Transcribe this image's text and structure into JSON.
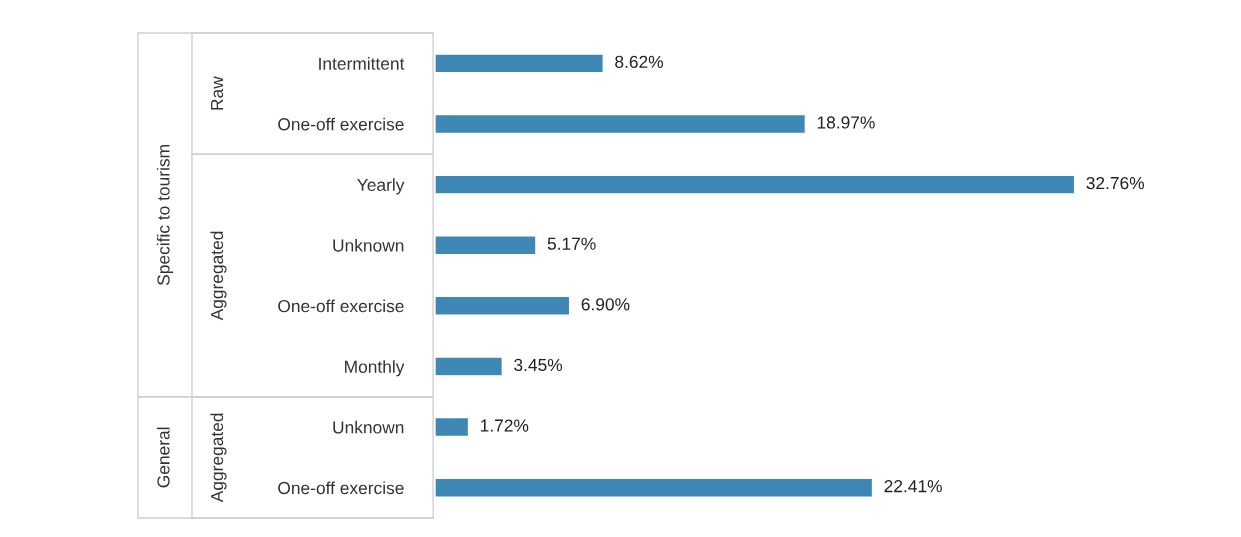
{
  "chart_data": {
    "type": "bar",
    "orientation": "horizontal",
    "tick_labels": "y",
    "categories": [
      "Intermittent",
      "One-off exercise",
      "Yearly",
      "Unknown",
      "One-off exercise",
      "Monthly",
      "Unknown",
      "One-off exercise"
    ],
    "values": [
      8.62,
      18.97,
      32.76,
      5.17,
      6.9,
      3.45,
      1.72,
      22.41
    ],
    "value_labels": [
      "8.62%",
      "18.97%",
      "32.76%",
      "5.17%",
      "6.90%",
      "3.45%",
      "1.72%",
      "22.41%"
    ],
    "color": "#3f88b5",
    "annotations": [
      "Specific to tourism",
      "Raw",
      "Aggregated",
      "General",
      "Aggregated"
    ]
  }
}
